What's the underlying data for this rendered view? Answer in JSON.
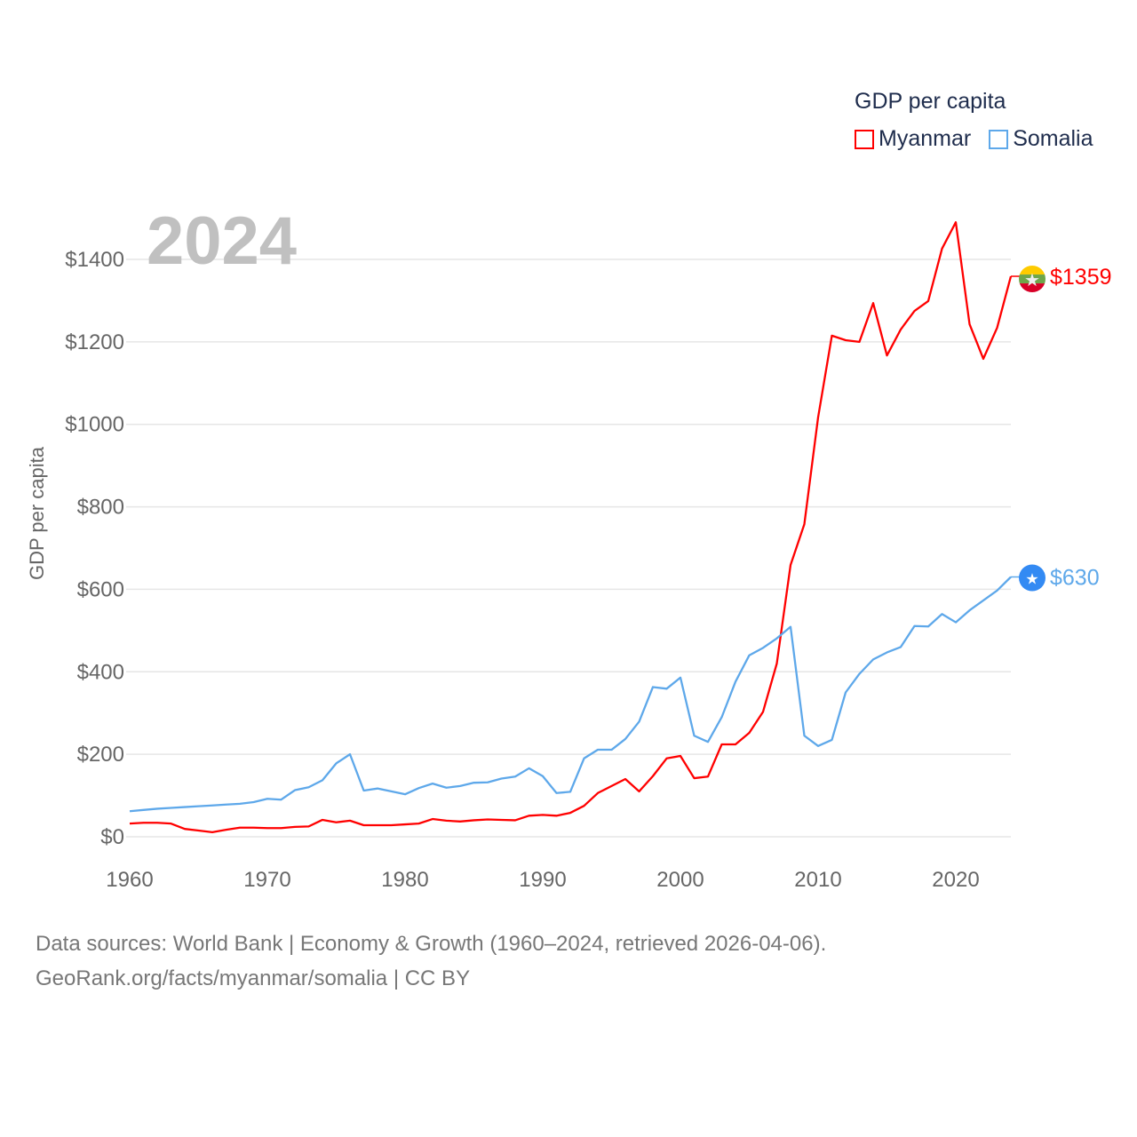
{
  "legend": {
    "title": "GDP per capita",
    "items": [
      {
        "label": "Myanmar",
        "color": "#ff0000"
      },
      {
        "label": "Somalia",
        "color": "#5ea8ea"
      }
    ]
  },
  "year_label": "2024",
  "footer": {
    "line1": "Data sources: World Bank | Economy & Growth (1960–2024, retrieved 2026-04-06).",
    "line2": "GeoRank.org/facts/myanmar/somalia | CC BY"
  },
  "chart_data": {
    "type": "line",
    "title": "GDP per capita",
    "xlabel": "",
    "ylabel": "GDP per capita",
    "xlim": [
      1960,
      2024
    ],
    "ylim": [
      0,
      1400
    ],
    "x_ticks": [
      1960,
      1970,
      1980,
      1990,
      2000,
      2010,
      2020
    ],
    "x_tick_labels": [
      "1960",
      "1970",
      "1980",
      "1990",
      "2000",
      "2010",
      "2020"
    ],
    "y_ticks": [
      0,
      200,
      400,
      600,
      800,
      1000,
      1200,
      1400
    ],
    "y_tick_labels": [
      "$0",
      "$200",
      "$400",
      "$600",
      "$800",
      "$1000",
      "$1200",
      "$1400"
    ],
    "grid": true,
    "legend_position": "top-right",
    "x": [
      1960,
      1961,
      1962,
      1963,
      1964,
      1965,
      1966,
      1967,
      1968,
      1969,
      1970,
      1971,
      1972,
      1973,
      1974,
      1975,
      1976,
      1977,
      1978,
      1979,
      1980,
      1981,
      1982,
      1983,
      1984,
      1985,
      1986,
      1987,
      1988,
      1989,
      1990,
      1991,
      1992,
      1993,
      1994,
      1995,
      1996,
      1997,
      1998,
      1999,
      2000,
      2001,
      2002,
      2003,
      2004,
      2005,
      2006,
      2007,
      2008,
      2009,
      2010,
      2011,
      2012,
      2013,
      2014,
      2015,
      2016,
      2017,
      2018,
      2019,
      2020,
      2021,
      2022,
      2023,
      2024
    ],
    "series": [
      {
        "name": "Myanmar",
        "color": "#ff0000",
        "end_label": "$1359",
        "flag_icon": "myanmar-flag",
        "values": [
          32,
          34,
          34,
          32,
          19,
          15,
          11,
          17,
          22,
          22,
          21,
          21,
          24,
          25,
          41,
          35,
          39,
          28,
          28,
          28,
          30,
          32,
          43,
          39,
          37,
          40,
          42,
          41,
          40,
          51,
          53,
          51,
          58,
          75,
          106,
          123,
          140,
          110,
          147,
          190,
          196,
          142,
          146,
          224,
          224,
          252,
          303,
          420,
          659,
          758,
          1017,
          1215,
          1204,
          1200,
          1294,
          1167,
          1230,
          1275,
          1299,
          1426,
          1490,
          1243,
          1159,
          1234,
          1359
        ]
      },
      {
        "name": "Somalia",
        "color": "#5ea8ea",
        "end_label": "$630",
        "flag_icon": "somalia-flag",
        "values": [
          62,
          65,
          68,
          70,
          72,
          74,
          76,
          78,
          80,
          84,
          92,
          90,
          113,
          120,
          137,
          178,
          200,
          112,
          117,
          110,
          103,
          118,
          129,
          119,
          123,
          131,
          132,
          141,
          146,
          166,
          147,
          106,
          109,
          190,
          211,
          211,
          237,
          279,
          363,
          359,
          386,
          245,
          230,
          290,
          376,
          440,
          458,
          481,
          509,
          245,
          220,
          235,
          350,
          395,
          430,
          447,
          460,
          511,
          510,
          540,
          520,
          549,
          573,
          597,
          630
        ]
      }
    ]
  }
}
